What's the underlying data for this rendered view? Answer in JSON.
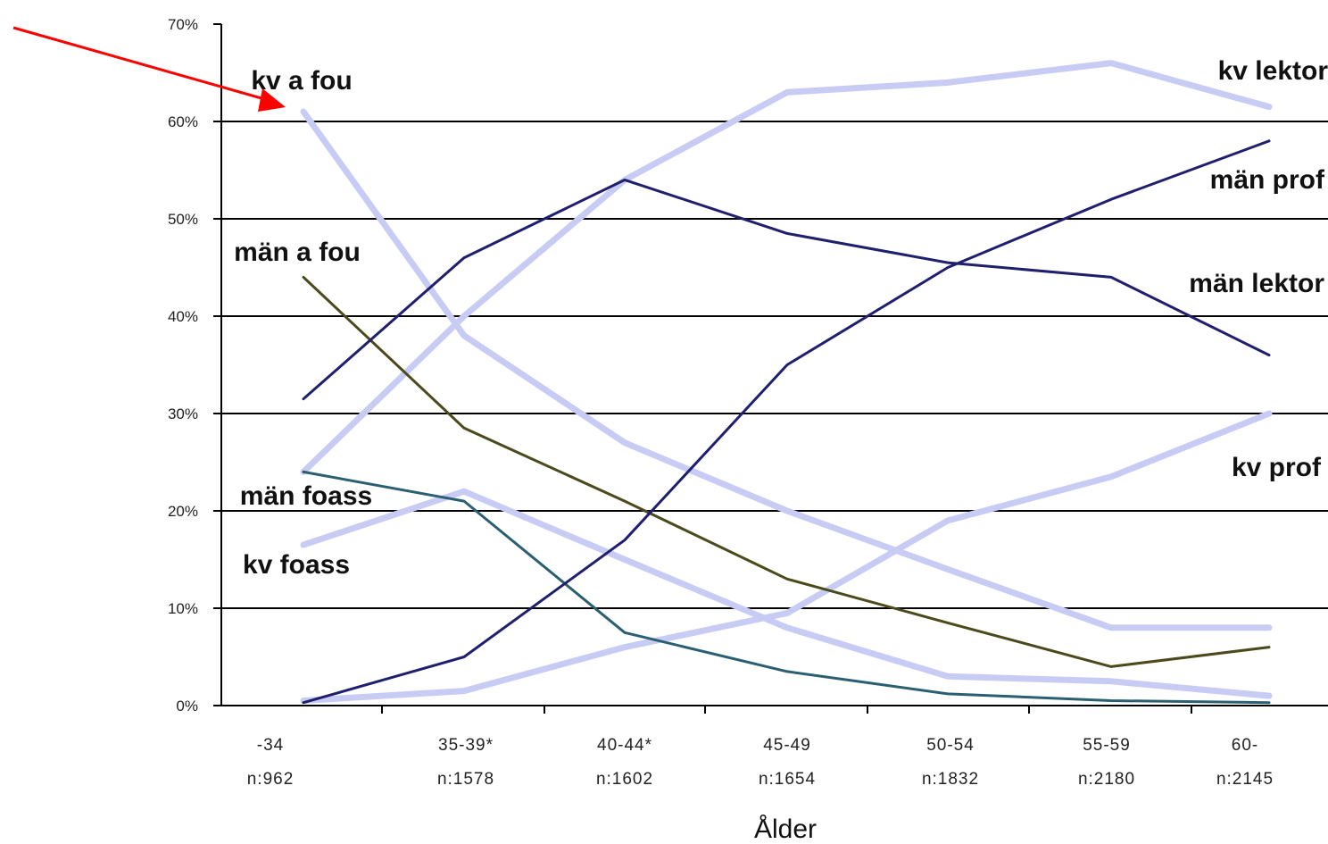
{
  "chart_data": {
    "type": "line",
    "xlabel": "Ålder",
    "ylabel": "",
    "ylim": [
      0,
      70
    ],
    "yticks": [
      "0%",
      "10%",
      "20%",
      "30%",
      "40%",
      "50%",
      "60%",
      "70%"
    ],
    "categories": [
      {
        "age": "-34",
        "n": "n:962"
      },
      {
        "age": "35-39*",
        "n": "n:1578"
      },
      {
        "age": "40-44*",
        "n": "n:1602"
      },
      {
        "age": "45-49",
        "n": "n:1654"
      },
      {
        "age": "50-54",
        "n": "n:1832"
      },
      {
        "age": "55-59",
        "n": "n:2180"
      },
      {
        "age": "60-",
        "n": "n:2145"
      }
    ],
    "grid": true,
    "series": [
      {
        "name": "kv a fou",
        "color": "#c8ccf4",
        "values": [
          61,
          38,
          27,
          20,
          14,
          8,
          8
        ]
      },
      {
        "name": "kv lektor",
        "color": "#c8ccf4",
        "values": [
          24,
          40,
          54,
          63,
          64,
          66,
          61.5
        ]
      },
      {
        "name": "kv prof",
        "color": "#c8ccf4",
        "values": [
          0.5,
          1.5,
          6,
          9.5,
          19,
          23.5,
          30
        ]
      },
      {
        "name": "kv foass",
        "color": "#c8ccf4",
        "values": [
          16.5,
          22,
          15,
          8,
          3,
          2.5,
          1
        ]
      },
      {
        "name": "män a fou",
        "color": "#4b4a1c",
        "values": [
          44,
          28.5,
          21,
          13,
          8.5,
          4,
          6
        ]
      },
      {
        "name": "män foass",
        "color": "#2a5f72",
        "values": [
          24,
          21,
          7.5,
          3.5,
          1.2,
          0.5,
          0.3
        ]
      },
      {
        "name": "män lektor",
        "color": "#1f1f6e",
        "values": [
          31.5,
          46,
          54,
          48.5,
          45.5,
          44,
          36
        ]
      },
      {
        "name": "män prof",
        "color": "#1f1f6e",
        "values": [
          0.3,
          5,
          17,
          35,
          45,
          52,
          58
        ]
      }
    ]
  }
}
